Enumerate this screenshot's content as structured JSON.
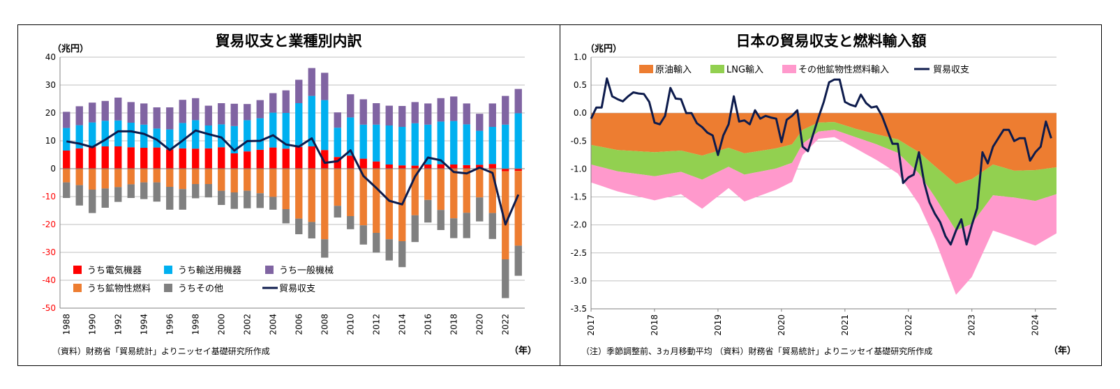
{
  "charts": [
    {
      "title": "貿易収支と業種別内訳",
      "unit": "（兆円）",
      "source": "（資料）財務省「貿易統計」よりニッセイ基礎研究所作成",
      "x_unit": "（年）"
    },
    {
      "title": "日本の貿易収支と燃料輸入額",
      "unit": "（兆円）",
      "source": "（注）季節調整前、3ヵ月移動平均 （資料）財務省「貿易統計」よりニッセイ基礎研究所作成",
      "x_unit": "（年）"
    }
  ],
  "chart_data": [
    {
      "type": "bar",
      "title": "貿易収支と業種別内訳",
      "ylabel": "（兆円）",
      "xlabel": "（年）",
      "ylim": [
        -50,
        40
      ],
      "yticks": [
        40,
        30,
        20,
        10,
        0,
        -10,
        -20,
        -30,
        -40,
        -50
      ],
      "grid": true,
      "legend_position": "bottom-left",
      "categories": [
        1988,
        1989,
        1990,
        1991,
        1992,
        1993,
        1994,
        1995,
        1996,
        1997,
        1998,
        1999,
        2000,
        2001,
        2002,
        2003,
        2004,
        2005,
        2006,
        2007,
        2008,
        2009,
        2010,
        2011,
        2012,
        2013,
        2014,
        2015,
        2016,
        2017,
        2018,
        2019,
        2020,
        2021,
        2022,
        2023
      ],
      "tick_labels": [
        "1988",
        "1990",
        "1992",
        "1994",
        "1996",
        "1998",
        "2000",
        "2002",
        "2004",
        "2006",
        "2008",
        "2010",
        "2012",
        "2014",
        "2016",
        "2018",
        "2020",
        "2022"
      ],
      "series": [
        {
          "name": "うち電気機器",
          "color": "#ff0000",
          "values": [
            6.5,
            7.3,
            7.8,
            8,
            8,
            7.7,
            7.5,
            7.6,
            6.9,
            7.3,
            7.2,
            7.3,
            7.7,
            5.5,
            6.2,
            6.8,
            7.6,
            7.2,
            7.8,
            8,
            6.7,
            4.2,
            4.7,
            3.6,
            2.6,
            1.5,
            1.2,
            1.1,
            1.5,
            1.6,
            1.5,
            1.3,
            1.4,
            1.7,
            -0.9,
            -0.8
          ]
        },
        {
          "name": "うち輸送用機器",
          "color": "#00b0f0",
          "values": [
            8.1,
            8.3,
            8.8,
            9.2,
            9.3,
            8.8,
            8.3,
            6.8,
            7.2,
            9.1,
            10.2,
            8.2,
            8.2,
            9.8,
            11.2,
            11.3,
            12.5,
            12.8,
            15.7,
            18.1,
            17.9,
            10.5,
            13.7,
            12.2,
            13.2,
            14,
            13.8,
            15.2,
            14.3,
            15.3,
            15.6,
            14.6,
            12.2,
            13.3,
            15.8,
            19.9
          ]
        },
        {
          "name": "うち一般機械",
          "color": "#8064a2",
          "values": [
            5.8,
            6.8,
            7.1,
            7.1,
            8.2,
            7.4,
            7.6,
            7.6,
            7.9,
            8.3,
            7.9,
            7.1,
            7.6,
            8,
            5.8,
            6.5,
            7,
            8.1,
            8.4,
            10,
            9.8,
            5.5,
            8.3,
            9.1,
            7.7,
            7.1,
            7.5,
            7.6,
            7.6,
            8.4,
            8.8,
            7.5,
            6.1,
            8.4,
            10.3,
            8.7
          ]
        },
        {
          "name": "うち鉱物性燃料",
          "color": "#ed7d31",
          "values": [
            -4.9,
            -5.9,
            -7.5,
            -7.1,
            -6.6,
            -5.6,
            -4.9,
            -4.9,
            -6.5,
            -7.3,
            -5.5,
            -5.5,
            -7.9,
            -8.5,
            -7.9,
            -8.8,
            -10.1,
            -14.5,
            -17.9,
            -19.1,
            -25.3,
            -13.3,
            -17,
            -20.3,
            -23,
            -25.3,
            -26,
            -16.7,
            -11.2,
            -14.8,
            -17.8,
            -15.8,
            -10.3,
            -15.9,
            -31.6,
            -26.8
          ]
        },
        {
          "name": "うちその他",
          "color": "#808080",
          "values": [
            -5.6,
            -7.3,
            -8.4,
            -6.9,
            -5.3,
            -4.9,
            -6,
            -6.9,
            -8.2,
            -7.4,
            -5.1,
            -4.8,
            -5.1,
            -5.9,
            -6.3,
            -5.3,
            -4.6,
            -5.1,
            -5.6,
            -5.9,
            -6.6,
            -4.2,
            -4.7,
            -6.9,
            -7.1,
            -7.6,
            -9.3,
            -9.6,
            -8.1,
            -7.2,
            -7.1,
            -9.1,
            -8.6,
            -9.3,
            -13.9,
            -10.8
          ]
        },
        {
          "name": "貿易収支",
          "type": "line",
          "color": "#0d1b4c",
          "values": [
            9.8,
            9,
            7.7,
            10.4,
            13.4,
            13.4,
            12.5,
            10.4,
            6.7,
            10.1,
            13.7,
            12.4,
            11.2,
            6.5,
            9.9,
            10,
            12,
            8.7,
            7.9,
            10.9,
            2.1,
            2.7,
            6.6,
            -2.6,
            -6.9,
            -11.5,
            -12.8,
            -2.8,
            4,
            3,
            -1.2,
            -1.7,
            0.4,
            -1.5,
            -20,
            -9.3
          ]
        }
      ]
    },
    {
      "type": "area",
      "title": "日本の貿易収支と燃料輸入額",
      "ylabel": "（兆円）",
      "xlabel": "（年）",
      "ylim": [
        -3.5,
        1.0
      ],
      "yticks": [
        "1.0",
        "0.5",
        "0.0",
        "-0.5",
        "-1.0",
        "-1.5",
        "-2.0",
        "-2.5",
        "-3.0",
        "-3.5"
      ],
      "x_tick_labels": [
        "2017",
        "2018",
        "2019",
        "2020",
        "2021",
        "2022",
        "2023",
        "2024"
      ],
      "x_range": [
        "2017-01",
        "2024-05"
      ],
      "grid": true,
      "legend_position": "top",
      "series": [
        {
          "name": "原油輸入",
          "color": "#ed7d31",
          "points": [
            [
              "2017-01",
              -0.57
            ],
            [
              "2017-06",
              -0.66
            ],
            [
              "2018-01",
              -0.7
            ],
            [
              "2018-06",
              -0.67
            ],
            [
              "2018-10",
              -0.76
            ],
            [
              "2019-03",
              -0.62
            ],
            [
              "2019-06",
              -0.72
            ],
            [
              "2019-12",
              -0.63
            ],
            [
              "2020-03",
              -0.56
            ],
            [
              "2020-05",
              -0.3
            ],
            [
              "2020-08",
              -0.17
            ],
            [
              "2020-11",
              -0.16
            ],
            [
              "2021-03",
              -0.28
            ],
            [
              "2021-07",
              -0.38
            ],
            [
              "2021-11",
              -0.47
            ],
            [
              "2022-03",
              -0.7
            ],
            [
              "2022-06",
              -0.95
            ],
            [
              "2022-10",
              -1.27
            ],
            [
              "2023-01",
              -1.18
            ],
            [
              "2023-05",
              -0.92
            ],
            [
              "2023-09",
              -1.03
            ],
            [
              "2024-01",
              -1.02
            ],
            [
              "2024-05",
              -0.97
            ]
          ]
        },
        {
          "name": "LNG輸入",
          "color": "#92d050",
          "points": [
            [
              "2017-01",
              -0.35
            ],
            [
              "2017-06",
              -0.38
            ],
            [
              "2018-01",
              -0.43
            ],
            [
              "2018-06",
              -0.38
            ],
            [
              "2018-10",
              -0.43
            ],
            [
              "2019-03",
              -0.34
            ],
            [
              "2019-06",
              -0.38
            ],
            [
              "2019-12",
              -0.36
            ],
            [
              "2020-03",
              -0.33
            ],
            [
              "2020-05",
              -0.25
            ],
            [
              "2020-08",
              -0.16
            ],
            [
              "2020-11",
              -0.14
            ],
            [
              "2021-03",
              -0.15
            ],
            [
              "2021-07",
              -0.18
            ],
            [
              "2021-11",
              -0.24
            ],
            [
              "2022-03",
              -0.38
            ],
            [
              "2022-06",
              -0.55
            ],
            [
              "2022-10",
              -0.83
            ],
            [
              "2023-01",
              -0.8
            ],
            [
              "2023-05",
              -0.55
            ],
            [
              "2023-09",
              -0.48
            ],
            [
              "2024-01",
              -0.55
            ],
            [
              "2024-05",
              -0.48
            ]
          ]
        },
        {
          "name": "その他鉱物性燃料輸入",
          "color": "#ff99cc",
          "points": [
            [
              "2017-01",
              -0.32
            ],
            [
              "2017-06",
              -0.36
            ],
            [
              "2018-01",
              -0.43
            ],
            [
              "2018-06",
              -0.4
            ],
            [
              "2018-10",
              -0.52
            ],
            [
              "2019-03",
              -0.38
            ],
            [
              "2019-06",
              -0.48
            ],
            [
              "2019-12",
              -0.38
            ],
            [
              "2020-03",
              -0.34
            ],
            [
              "2020-05",
              -0.2
            ],
            [
              "2020-08",
              -0.13
            ],
            [
              "2020-11",
              -0.13
            ],
            [
              "2021-03",
              -0.2
            ],
            [
              "2021-07",
              -0.28
            ],
            [
              "2021-11",
              -0.37
            ],
            [
              "2022-03",
              -0.55
            ],
            [
              "2022-06",
              -0.75
            ],
            [
              "2022-10",
              -1.15
            ],
            [
              "2023-01",
              -0.95
            ],
            [
              "2023-05",
              -0.63
            ],
            [
              "2023-09",
              -0.72
            ],
            [
              "2024-01",
              -0.8
            ],
            [
              "2024-05",
              -0.7
            ]
          ]
        },
        {
          "name": "貿易収支",
          "type": "line",
          "color": "#0d1b4c",
          "points": [
            [
              "2017-01",
              -0.1
            ],
            [
              "2017-02",
              0.1
            ],
            [
              "2017-03",
              0.1
            ],
            [
              "2017-04",
              0.62
            ],
            [
              "2017-05",
              0.3
            ],
            [
              "2017-06",
              0.25
            ],
            [
              "2017-07",
              0.21
            ],
            [
              "2017-08",
              0.3
            ],
            [
              "2017-09",
              0.37
            ],
            [
              "2017-10",
              0.35
            ],
            [
              "2017-11",
              0.34
            ],
            [
              "2017-12",
              0.2
            ],
            [
              "2018-01",
              -0.17
            ],
            [
              "2018-02",
              -0.2
            ],
            [
              "2018-03",
              -0.05
            ],
            [
              "2018-04",
              0.45
            ],
            [
              "2018-05",
              0.26
            ],
            [
              "2018-06",
              0.25
            ],
            [
              "2018-07",
              0.0
            ],
            [
              "2018-08",
              0.0
            ],
            [
              "2018-09",
              -0.18
            ],
            [
              "2018-10",
              -0.25
            ],
            [
              "2018-11",
              -0.35
            ],
            [
              "2018-12",
              -0.4
            ],
            [
              "2019-01",
              -0.75
            ],
            [
              "2019-02",
              -0.4
            ],
            [
              "2019-03",
              -0.2
            ],
            [
              "2019-04",
              0.3
            ],
            [
              "2019-05",
              -0.15
            ],
            [
              "2019-06",
              -0.13
            ],
            [
              "2019-07",
              -0.2
            ],
            [
              "2019-08",
              0.05
            ],
            [
              "2019-09",
              -0.1
            ],
            [
              "2019-10",
              -0.05
            ],
            [
              "2019-11",
              -0.08
            ],
            [
              "2019-12",
              -0.1
            ],
            [
              "2020-01",
              -0.52
            ],
            [
              "2020-02",
              -0.12
            ],
            [
              "2020-03",
              -0.05
            ],
            [
              "2020-04",
              0.05
            ],
            [
              "2020-05",
              -0.6
            ],
            [
              "2020-06",
              -0.68
            ],
            [
              "2020-07",
              -0.38
            ],
            [
              "2020-08",
              -0.08
            ],
            [
              "2020-09",
              0.2
            ],
            [
              "2020-10",
              0.55
            ],
            [
              "2020-11",
              0.6
            ],
            [
              "2020-12",
              0.6
            ],
            [
              "2021-01",
              0.2
            ],
            [
              "2021-02",
              0.15
            ],
            [
              "2021-03",
              0.12
            ],
            [
              "2021-04",
              0.33
            ],
            [
              "2021-05",
              0.18
            ],
            [
              "2021-06",
              0.1
            ],
            [
              "2021-07",
              0.12
            ],
            [
              "2021-08",
              -0.05
            ],
            [
              "2021-09",
              -0.3
            ],
            [
              "2021-10",
              -0.55
            ],
            [
              "2021-11",
              -0.55
            ],
            [
              "2021-12",
              -1.25
            ],
            [
              "2022-01",
              -1.15
            ],
            [
              "2022-02",
              -1.1
            ],
            [
              "2022-03",
              -0.7
            ],
            [
              "2022-04",
              -1.25
            ],
            [
              "2022-05",
              -1.6
            ],
            [
              "2022-06",
              -1.8
            ],
            [
              "2022-07",
              -1.95
            ],
            [
              "2022-08",
              -2.2
            ],
            [
              "2022-09",
              -2.35
            ],
            [
              "2022-10",
              -2.1
            ],
            [
              "2022-11",
              -1.9
            ],
            [
              "2022-12",
              -2.35
            ],
            [
              "2023-01",
              -2.0
            ],
            [
              "2023-02",
              -1.7
            ],
            [
              "2023-03",
              -0.7
            ],
            [
              "2023-04",
              -0.9
            ],
            [
              "2023-05",
              -0.6
            ],
            [
              "2023-06",
              -0.45
            ],
            [
              "2023-07",
              -0.3
            ],
            [
              "2023-08",
              -0.3
            ],
            [
              "2023-09",
              -0.5
            ],
            [
              "2023-10",
              -0.45
            ],
            [
              "2023-11",
              -0.45
            ],
            [
              "2023-12",
              -0.85
            ],
            [
              "2024-01",
              -0.7
            ],
            [
              "2024-02",
              -0.6
            ],
            [
              "2024-03",
              -0.15
            ],
            [
              "2024-04",
              -0.45
            ]
          ]
        }
      ]
    }
  ]
}
